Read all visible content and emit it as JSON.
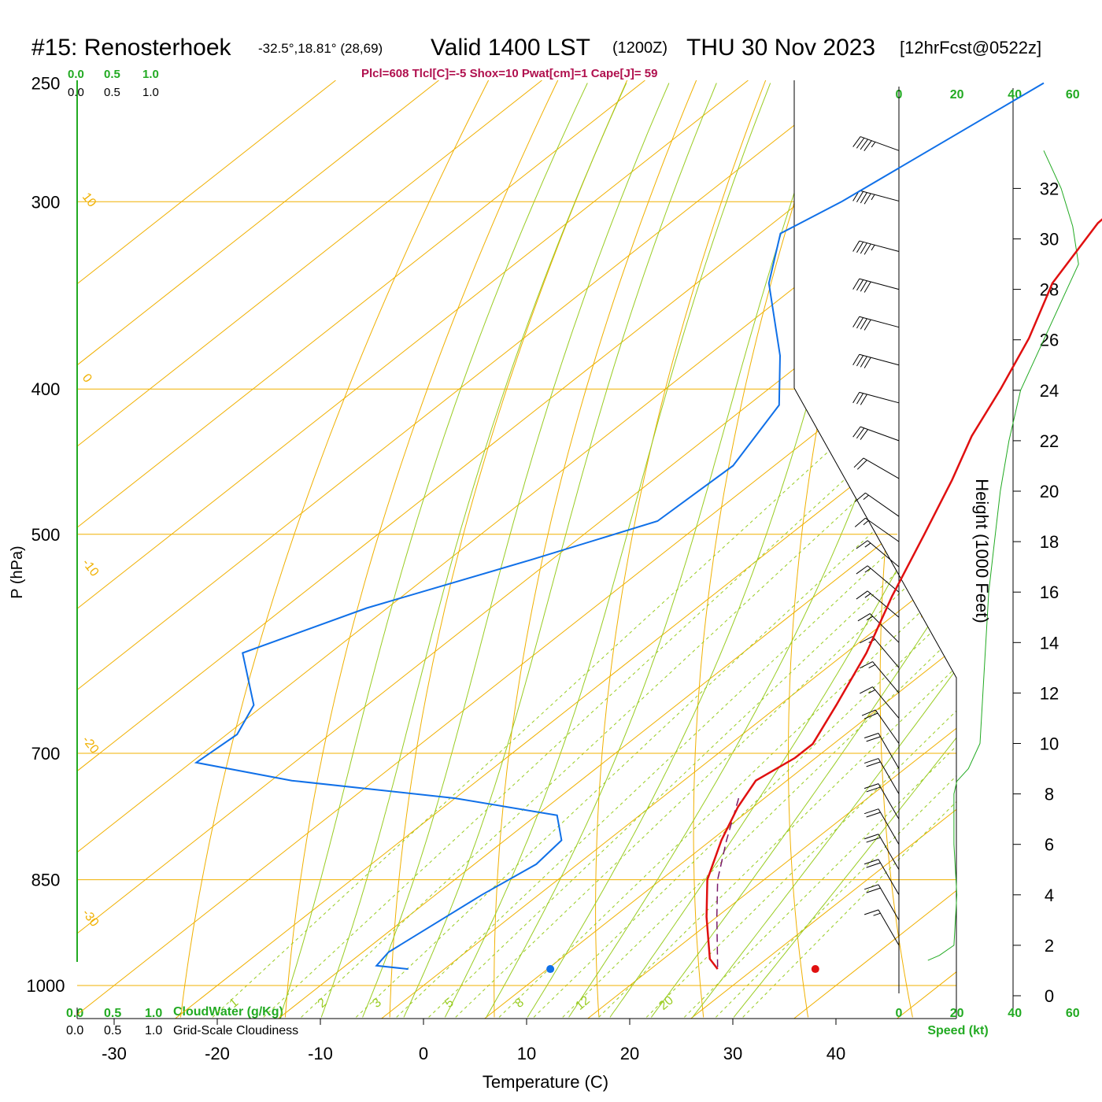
{
  "header": {
    "station": "#15: Renosterhoek",
    "coords": "-32.5°,18.81° (28,69)",
    "valid": "Valid 1400 LST",
    "zulu": "(1200Z)",
    "date": "THU 30 Nov 2023",
    "forecast": "[12hrFcst@0522z]",
    "indices": "Plcl=608 Tlcl[C]=-5 Shox=10 Pwat[cm]=1 Cape[J]= 59"
  },
  "colors": {
    "temperature": "#e01010",
    "dewpoint": "#1070e8",
    "isotherm_isobar": "#f0b000",
    "adiabat": "#99cc22",
    "green_text": "#22aa22",
    "indices_text": "#b0104e",
    "parcel": "#7a1a6a"
  },
  "chart_data": {
    "type": "line",
    "xlabel": "Temperature (C)",
    "ylabel": "P (hPa)",
    "y2label": "Height (1000 Feet)",
    "x_ticks": [
      "-30",
      "-10",
      "-20",
      "0",
      "10",
      "20",
      "30",
      "40"
    ],
    "x_tick_values": [
      -30,
      -20,
      -10,
      0,
      10,
      20,
      30,
      40
    ],
    "p_ticks": [
      "250",
      "300",
      "400",
      "500",
      "700",
      "850",
      "1000"
    ],
    "p_tick_values": [
      250,
      300,
      400,
      500,
      700,
      850,
      1000
    ],
    "height_ticks": [
      "0",
      "2",
      "4",
      "6",
      "8",
      "10",
      "12",
      "14",
      "16",
      "18",
      "20",
      "22",
      "24",
      "26",
      "28",
      "30",
      "32"
    ],
    "height_tick_values": [
      0,
      2,
      4,
      6,
      8,
      10,
      12,
      14,
      16,
      18,
      20,
      22,
      24,
      26,
      28,
      30,
      32
    ],
    "isotherm_labels": [
      "10",
      "0",
      "-10",
      "-20",
      "-30",
      "0",
      "10",
      "20",
      "30"
    ],
    "mixing_ratio_labels": [
      "1",
      "2",
      "3",
      "5",
      "8",
      "12",
      "20"
    ],
    "mixing_ratio_values": [
      1,
      2,
      3,
      5,
      8,
      12,
      20
    ],
    "temperature_profile": [
      {
        "p": 250,
        "t": -30.5
      },
      {
        "p": 270,
        "t": -29.5
      },
      {
        "p": 290,
        "t": -29.0
      },
      {
        "p": 310,
        "t": -28.5
      },
      {
        "p": 340,
        "t": -25.5
      },
      {
        "p": 370,
        "t": -21.0
      },
      {
        "p": 400,
        "t": -17.5
      },
      {
        "p": 430,
        "t": -14.5
      },
      {
        "p": 460,
        "t": -11.0
      },
      {
        "p": 500,
        "t": -7.0
      },
      {
        "p": 550,
        "t": -2.5
      },
      {
        "p": 600,
        "t": 2.0
      },
      {
        "p": 650,
        "t": 5.5
      },
      {
        "p": 690,
        "t": 8.0
      },
      {
        "p": 705,
        "t": 8.0
      },
      {
        "p": 730,
        "t": 7.0
      },
      {
        "p": 760,
        "t": 8.5
      },
      {
        "p": 800,
        "t": 11.0
      },
      {
        "p": 850,
        "t": 14.5
      },
      {
        "p": 900,
        "t": 19.0
      },
      {
        "p": 960,
        "t": 24.5
      },
      {
        "p": 975,
        "t": 26.5
      }
    ],
    "dewpoint_profile": [
      {
        "p": 250,
        "t": -51.0
      },
      {
        "p": 300,
        "t": -56.0
      },
      {
        "p": 315,
        "t": -58.0
      },
      {
        "p": 340,
        "t": -53.0
      },
      {
        "p": 380,
        "t": -43.0
      },
      {
        "p": 410,
        "t": -37.0
      },
      {
        "p": 450,
        "t": -34.0
      },
      {
        "p": 490,
        "t": -34.5
      },
      {
        "p": 520,
        "t": -42.0
      },
      {
        "p": 560,
        "t": -52.0
      },
      {
        "p": 600,
        "t": -58.5
      },
      {
        "p": 650,
        "t": -51.0
      },
      {
        "p": 680,
        "t": -49.0
      },
      {
        "p": 710,
        "t": -49.5
      },
      {
        "p": 730,
        "t": -38.0
      },
      {
        "p": 750,
        "t": -20.0
      },
      {
        "p": 770,
        "t": -8.0
      },
      {
        "p": 800,
        "t": -4.5
      },
      {
        "p": 830,
        "t": -4.0
      },
      {
        "p": 870,
        "t": -5.5
      },
      {
        "p": 950,
        "t": -7.5
      },
      {
        "p": 970,
        "t": -7.0
      },
      {
        "p": 975,
        "t": -3.5
      }
    ],
    "parcel_path": [
      {
        "p": 750,
        "t": 7.5
      },
      {
        "p": 800,
        "t": 11.5
      },
      {
        "p": 850,
        "t": 15.5
      },
      {
        "p": 900,
        "t": 20.0
      },
      {
        "p": 975,
        "t": 26.5
      }
    ],
    "surface_temp_marker": {
      "t": 38.0,
      "p": 975
    },
    "surface_dew_marker": {
      "t": 12.3,
      "p": 975
    },
    "wind_speed_axis_ticks": [
      "0",
      "20",
      "40",
      "60"
    ],
    "wind_speed_axis_values": [
      0,
      20,
      40,
      60
    ],
    "wind_speed_label": "Speed (kt)",
    "wind_speed_profile": [
      {
        "h": 33.5,
        "s": 50
      },
      {
        "h": 32,
        "s": 56
      },
      {
        "h": 30.5,
        "s": 60
      },
      {
        "h": 29,
        "s": 62
      },
      {
        "h": 28,
        "s": 58
      },
      {
        "h": 26,
        "s": 50
      },
      {
        "h": 24,
        "s": 42
      },
      {
        "h": 22,
        "s": 38
      },
      {
        "h": 20,
        "s": 35
      },
      {
        "h": 18,
        "s": 33
      },
      {
        "h": 16,
        "s": 31
      },
      {
        "h": 14,
        "s": 30
      },
      {
        "h": 12,
        "s": 29
      },
      {
        "h": 10,
        "s": 28
      },
      {
        "h": 9,
        "s": 24
      },
      {
        "h": 8.5,
        "s": 20
      },
      {
        "h": 8,
        "s": 19
      },
      {
        "h": 6,
        "s": 19
      },
      {
        "h": 4,
        "s": 20
      },
      {
        "h": 2,
        "s": 19
      },
      {
        "h": 1.6,
        "s": 14
      },
      {
        "h": 1.4,
        "s": 10
      }
    ],
    "wind_barbs": [
      {
        "h": 33.5,
        "speed": 45,
        "dir": 290
      },
      {
        "h": 31.5,
        "speed": 45,
        "dir": 285
      },
      {
        "h": 29.5,
        "speed": 45,
        "dir": 285
      },
      {
        "h": 28,
        "speed": 40,
        "dir": 285
      },
      {
        "h": 26.5,
        "speed": 40,
        "dir": 285
      },
      {
        "h": 25,
        "speed": 40,
        "dir": 285
      },
      {
        "h": 23.5,
        "speed": 30,
        "dir": 285
      },
      {
        "h": 22,
        "speed": 30,
        "dir": 290
      },
      {
        "h": 20.5,
        "speed": 20,
        "dir": 300
      },
      {
        "h": 19,
        "speed": 15,
        "dir": 305
      },
      {
        "h": 18,
        "speed": 15,
        "dir": 305
      },
      {
        "h": 17,
        "speed": 15,
        "dir": 310
      },
      {
        "h": 16,
        "speed": 15,
        "dir": 310
      },
      {
        "h": 15,
        "speed": 15,
        "dir": 310
      },
      {
        "h": 14,
        "speed": 15,
        "dir": 315
      },
      {
        "h": 13,
        "speed": 15,
        "dir": 320
      },
      {
        "h": 12,
        "speed": 15,
        "dir": 320
      },
      {
        "h": 11,
        "speed": 15,
        "dir": 320
      },
      {
        "h": 10,
        "speed": 20,
        "dir": 325
      },
      {
        "h": 9,
        "speed": 20,
        "dir": 330
      },
      {
        "h": 8,
        "speed": 20,
        "dir": 330
      },
      {
        "h": 7,
        "speed": 20,
        "dir": 330
      },
      {
        "h": 6,
        "speed": 20,
        "dir": 330
      },
      {
        "h": 5,
        "speed": 20,
        "dir": 330
      },
      {
        "h": 4,
        "speed": 20,
        "dir": 330
      },
      {
        "h": 3,
        "speed": 20,
        "dir": 330
      },
      {
        "h": 2,
        "speed": 15,
        "dir": 330
      }
    ],
    "cloud_scales": {
      "top_green": [
        "0.0",
        "0.5",
        "1.0"
      ],
      "top_black": [
        "0.0",
        "0.5",
        "1.0"
      ],
      "bottom_green": [
        "0.0",
        "0.5",
        "1.0"
      ],
      "bottom_black": [
        "0.0",
        "0.5",
        "1.0"
      ],
      "cloudwater_label": "CloudWater (g/Kg)",
      "cloudiness_label": "Grid-Scale Cloudiness"
    },
    "grid": true
  }
}
